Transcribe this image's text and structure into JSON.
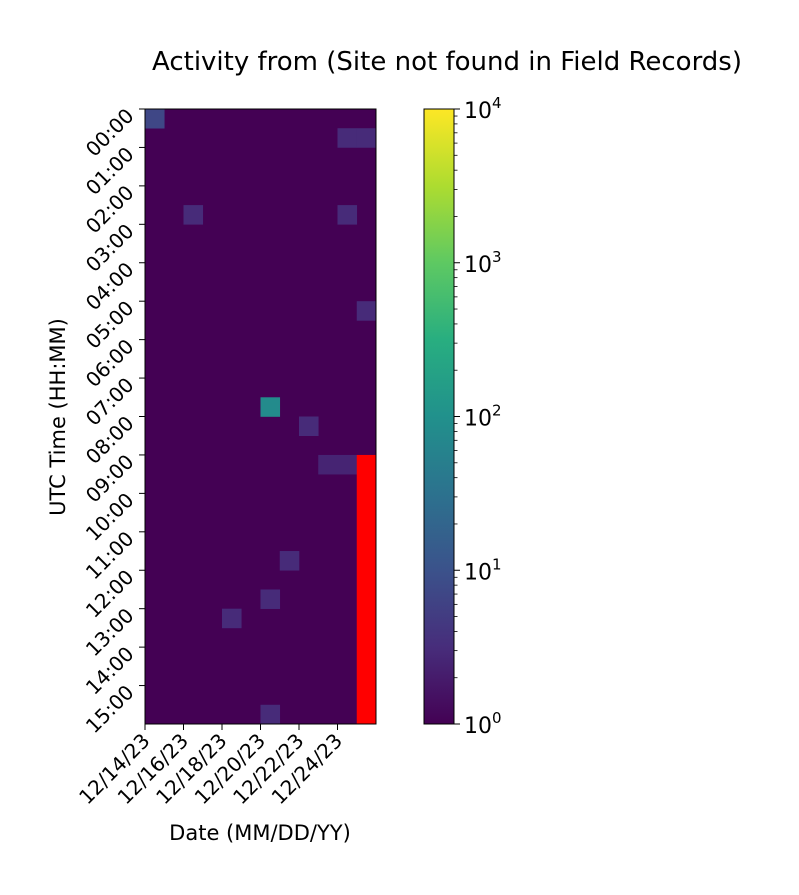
{
  "chart_data": {
    "type": "heatmap",
    "title": "Activity from (Site not found in Field Records)",
    "xlabel": "Date (MM/DD/YY)",
    "ylabel": "UTC Time (HH:MM)",
    "x_ticks": [
      "12/14/23",
      "12/16/23",
      "12/18/23",
      "12/20/23",
      "12/22/23",
      "12/24/23"
    ],
    "y_ticks": [
      "00:00",
      "01:00",
      "02:00",
      "03:00",
      "04:00",
      "05:00",
      "06:00",
      "07:00",
      "08:00",
      "09:00",
      "10:00",
      "11:00",
      "12:00",
      "13:00",
      "14:00",
      "15:00"
    ],
    "n_days": 12,
    "n_slots": 32,
    "slot_minutes": 30,
    "first_day": "12/14/23",
    "background_value": 1,
    "colormap": "viridis",
    "color_scale": "log",
    "colorbar_range": [
      1,
      10000
    ],
    "colorbar_ticks": [
      {
        "value": 1,
        "base": "10",
        "exp": "0"
      },
      {
        "value": 10,
        "base": "10",
        "exp": "1"
      },
      {
        "value": 100,
        "base": "10",
        "exp": "2"
      },
      {
        "value": 1000,
        "base": "10",
        "exp": "3"
      },
      {
        "value": 10000,
        "base": "10",
        "exp": "4"
      }
    ],
    "cells": [
      {
        "date": "12/14/23",
        "time": "00:00",
        "value": 7
      },
      {
        "date": "12/24/23",
        "time": "00:30",
        "value": 3
      },
      {
        "date": "12/25/23",
        "time": "00:30",
        "value": 3
      },
      {
        "date": "12/16/23",
        "time": "02:30",
        "value": 3
      },
      {
        "date": "12/24/23",
        "time": "02:30",
        "value": 3
      },
      {
        "date": "12/25/23",
        "time": "05:00",
        "value": 3
      },
      {
        "date": "12/20/23",
        "time": "07:30",
        "value": 80
      },
      {
        "date": "12/22/23",
        "time": "08:00",
        "value": 3
      },
      {
        "date": "12/23/23",
        "time": "09:00",
        "value": 2.5
      },
      {
        "date": "12/24/23",
        "time": "09:00",
        "value": 2.5
      },
      {
        "date": "12/21/23",
        "time": "11:30",
        "value": 3
      },
      {
        "date": "12/20/23",
        "time": "12:30",
        "value": 3
      },
      {
        "date": "12/18/23",
        "time": "13:00",
        "value": 3
      },
      {
        "date": "12/20/23",
        "time": "15:30",
        "value": 3
      }
    ],
    "overlay": {
      "color": "#ff0000",
      "date": "12/25/23",
      "time_start": "09:00",
      "time_end": "16:00"
    }
  }
}
